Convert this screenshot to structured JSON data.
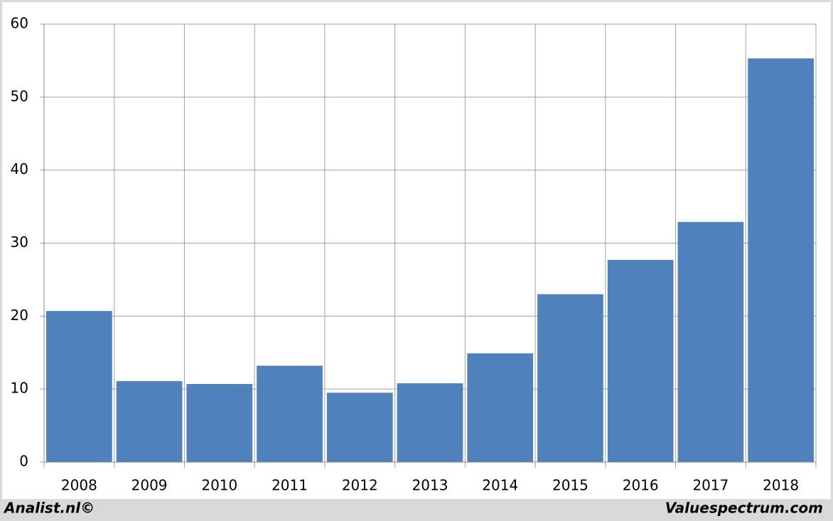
{
  "chart_data": {
    "type": "bar",
    "categories": [
      "2008",
      "2009",
      "2010",
      "2011",
      "2012",
      "2013",
      "2014",
      "2015",
      "2016",
      "2017",
      "2018"
    ],
    "values": [
      20.7,
      11.1,
      10.7,
      13.2,
      9.5,
      10.8,
      14.9,
      23.0,
      27.7,
      32.9,
      55.3
    ],
    "color": "#4f81bd",
    "ylim": [
      0,
      60
    ],
    "yticks": [
      0,
      10,
      20,
      30,
      40,
      50,
      60
    ],
    "grid": true
  },
  "footer": {
    "left": "Analist.nl©",
    "right": "Valuespectrum.com"
  }
}
